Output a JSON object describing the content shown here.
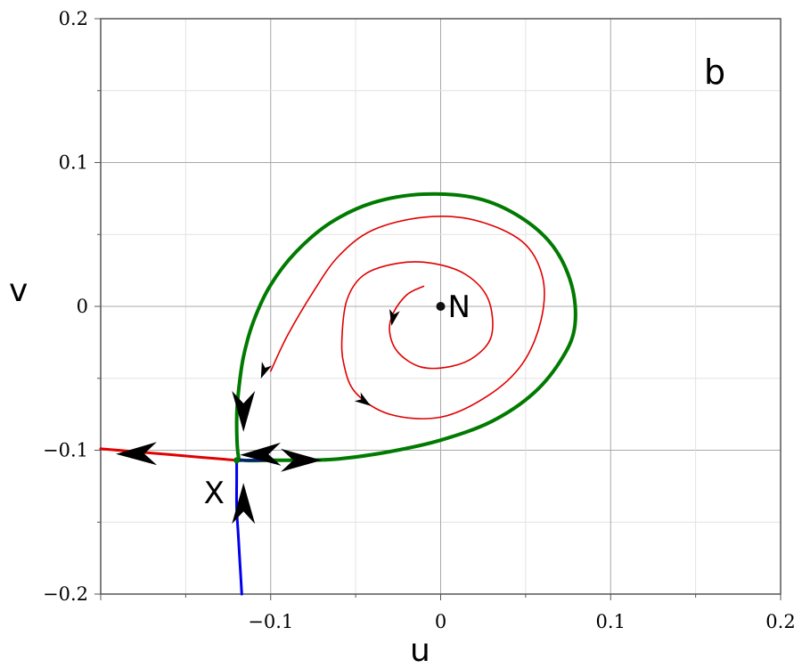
{
  "chart_data": {
    "type": "line",
    "panel_label": "b",
    "xlabel": "u",
    "ylabel": "v",
    "xlim": [
      -0.2,
      0.2
    ],
    "ylim": [
      -0.2,
      0.2
    ],
    "grid": true,
    "x_ticks": [
      -0.1,
      0,
      0.1,
      0.2
    ],
    "x_tick_labels": [
      "−0.1",
      "0",
      "0.1",
      "0.2"
    ],
    "y_ticks": [
      -0.2,
      -0.1,
      0,
      0.1,
      0.2
    ],
    "y_tick_labels": [
      "−0.2",
      "−0.1",
      "0",
      "0.1",
      "0.2"
    ],
    "series": [
      {
        "role": "separatrix-loop",
        "color": "#007a00",
        "points": [
          [
            -0.082,
            -0.107
          ],
          [
            -0.06,
            -0.106
          ],
          [
            -0.03,
            -0.101
          ],
          [
            0,
            -0.093
          ],
          [
            0.03,
            -0.08
          ],
          [
            0.055,
            -0.06
          ],
          [
            0.072,
            -0.035
          ],
          [
            0.079,
            -0.013
          ],
          [
            0.077,
            0.015
          ],
          [
            0.066,
            0.042
          ],
          [
            0.047,
            0.062
          ],
          [
            0.022,
            0.075
          ],
          [
            -0.01,
            0.078
          ],
          [
            -0.04,
            0.072
          ],
          [
            -0.065,
            0.058
          ],
          [
            -0.085,
            0.038
          ],
          [
            -0.1,
            0.015
          ],
          [
            -0.11,
            -0.01
          ],
          [
            -0.116,
            -0.035
          ],
          [
            -0.119,
            -0.06
          ],
          [
            -0.12,
            -0.08
          ],
          [
            -0.119,
            -0.104
          ],
          [
            -0.116,
            -0.107
          ],
          [
            -0.1,
            -0.107
          ],
          [
            -0.082,
            -0.107
          ]
        ]
      },
      {
        "role": "spiral-trajectory",
        "color": "#e00000",
        "points": [
          [
            -0.1,
            -0.045
          ],
          [
            -0.09,
            -0.02
          ],
          [
            -0.075,
            0.01
          ],
          [
            -0.06,
            0.035
          ],
          [
            -0.04,
            0.053
          ],
          [
            -0.01,
            0.062
          ],
          [
            0.02,
            0.06
          ],
          [
            0.048,
            0.045
          ],
          [
            0.06,
            0.02
          ],
          [
            0.059,
            -0.01
          ],
          [
            0.048,
            -0.04
          ],
          [
            0.028,
            -0.062
          ],
          [
            0,
            -0.077
          ],
          [
            -0.03,
            -0.075
          ],
          [
            -0.05,
            -0.06
          ],
          [
            -0.057,
            -0.04
          ],
          [
            -0.058,
            -0.02
          ],
          [
            -0.055,
            0.005
          ],
          [
            -0.045,
            0.022
          ],
          [
            -0.025,
            0.03
          ],
          [
            -0.005,
            0.03
          ],
          [
            0.015,
            0.022
          ],
          [
            0.028,
            0.005
          ],
          [
            0.03,
            -0.02
          ],
          [
            0.02,
            -0.035
          ],
          [
            0.005,
            -0.042
          ],
          [
            -0.012,
            -0.042
          ],
          [
            -0.025,
            -0.032
          ],
          [
            -0.03,
            -0.018
          ],
          [
            -0.028,
            -0.005
          ],
          [
            -0.02,
            0.008
          ],
          [
            -0.01,
            0.014
          ]
        ]
      },
      {
        "role": "unstable-manifold-left",
        "color": "#e00000",
        "points": [
          [
            -0.2,
            -0.099
          ],
          [
            -0.18,
            -0.101
          ],
          [
            -0.16,
            -0.103
          ],
          [
            -0.14,
            -0.105
          ],
          [
            -0.12,
            -0.107
          ]
        ]
      },
      {
        "role": "stable-manifold-bottom",
        "color": "#0000ee",
        "points": [
          [
            -0.117,
            -0.2
          ],
          [
            -0.118,
            -0.18
          ],
          [
            -0.119,
            -0.16
          ],
          [
            -0.12,
            -0.14
          ],
          [
            -0.12,
            -0.12
          ],
          [
            -0.12,
            -0.107
          ]
        ]
      },
      {
        "role": "saddle-connector-right",
        "color": "#0a1a8a",
        "points": [
          [
            -0.12,
            -0.107
          ],
          [
            -0.11,
            -0.107
          ],
          [
            -0.1,
            -0.107
          ]
        ]
      }
    ],
    "arrows": [
      {
        "at": [
          -0.106,
          -0.103
        ],
        "dir": [
          -1,
          -0.02
        ],
        "size": "large"
      },
      {
        "at": [
          -0.082,
          -0.107
        ],
        "dir": [
          1,
          0
        ],
        "size": "large"
      },
      {
        "at": [
          -0.116,
          -0.073
        ],
        "dir": [
          0,
          -1
        ],
        "size": "large"
      },
      {
        "at": [
          -0.116,
          -0.137
        ],
        "dir": [
          0,
          1
        ],
        "size": "large"
      },
      {
        "at": [
          -0.179,
          -0.1025
        ],
        "dir": [
          -1,
          -0.01
        ],
        "size": "large"
      },
      {
        "at": [
          -0.104,
          -0.045
        ],
        "dir": [
          -0.4,
          -1
        ],
        "size": "small"
      },
      {
        "at": [
          -0.028,
          -0.008
        ],
        "dir": [
          -0.2,
          -1
        ],
        "size": "small"
      },
      {
        "at": [
          -0.045,
          -0.066
        ],
        "dir": [
          0.8,
          -0.55
        ],
        "size": "small"
      }
    ],
    "annotations": [
      {
        "text": "N",
        "at": [
          0,
          0
        ],
        "role": "node"
      },
      {
        "text": "X",
        "at": [
          -0.12,
          -0.107
        ],
        "role": "saddle"
      }
    ]
  }
}
